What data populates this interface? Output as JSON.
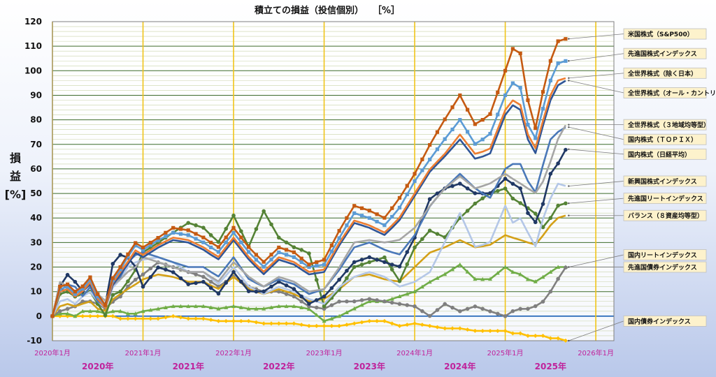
{
  "chart_data": {
    "type": "line",
    "title": "積立ての損益（投信個別）　　［%］",
    "ylabel_chars": [
      "損",
      "益",
      "[%]"
    ],
    "ylim": [
      -10,
      120
    ],
    "yticks": [
      -10,
      0,
      10,
      20,
      30,
      40,
      50,
      60,
      70,
      80,
      90,
      100,
      110,
      120
    ],
    "minor_grid": 2,
    "xlim": [
      2020.0,
      2026.2
    ],
    "x_ticks": [
      {
        "x": 2020.0,
        "label": "2020年1月"
      },
      {
        "x": 2021.0,
        "label": "2021年1月"
      },
      {
        "x": 2022.0,
        "label": "2022年1月"
      },
      {
        "x": 2023.0,
        "label": "2023年1月"
      },
      {
        "x": 2024.0,
        "label": "2024年1月"
      },
      {
        "x": 2025.0,
        "label": "2025年1月"
      },
      {
        "x": 2026.0,
        "label": "2026年1月"
      }
    ],
    "year_labels": [
      {
        "x": 2020.5,
        "label": "2020年"
      },
      {
        "x": 2021.5,
        "label": "2021年"
      },
      {
        "x": 2022.5,
        "label": "2022年"
      },
      {
        "x": 2023.5,
        "label": "2023年"
      },
      {
        "x": 2024.5,
        "label": "2024年"
      },
      {
        "x": 2025.5,
        "label": "2025年"
      }
    ],
    "anchors": [
      2020.0,
      2020.08,
      2020.17,
      2020.25,
      2020.33,
      2020.42,
      2020.5,
      2020.58,
      2020.67,
      2020.75,
      2020.83,
      2020.92,
      2021.0,
      2021.17,
      2021.33,
      2021.5,
      2021.67,
      2021.83,
      2022.0,
      2022.17,
      2022.33,
      2022.5,
      2022.67,
      2022.83,
      2023.0,
      2023.17,
      2023.33,
      2023.5,
      2023.67,
      2023.83,
      2024.0,
      2024.17,
      2024.33,
      2024.5,
      2024.67,
      2024.83,
      2025.0,
      2025.08,
      2025.17,
      2025.25,
      2025.33,
      2025.42,
      2025.5,
      2025.58,
      2025.67
    ],
    "series": [
      {
        "name": "米国株式（S&P500）",
        "color": "#c55a11",
        "marker": "square",
        "values": [
          0,
          12,
          13,
          10,
          12,
          16,
          9,
          4,
          16,
          20,
          25,
          30,
          28,
          32,
          36,
          35,
          32,
          28,
          36,
          28,
          22,
          28,
          26,
          21,
          23,
          35,
          45,
          43,
          40,
          48,
          58,
          70,
          80,
          90,
          78,
          82,
          100,
          109,
          107,
          88,
          76,
          92,
          104,
          112,
          113
        ]
      },
      {
        "name": "先進国株式インデックス",
        "color": "#5b9bd5",
        "marker": "square",
        "values": [
          0,
          11,
          12,
          9,
          11,
          15,
          8,
          4,
          15,
          19,
          24,
          29,
          27,
          31,
          34,
          33,
          30,
          26,
          34,
          26,
          20,
          26,
          24,
          20,
          21,
          32,
          42,
          40,
          37,
          44,
          55,
          64,
          72,
          80,
          70,
          74,
          90,
          95,
          93,
          78,
          72,
          85,
          96,
          103,
          104
        ]
      },
      {
        "name": "全世界株式（除く日本）",
        "color": "#ed7d31",
        "marker": "none",
        "values": [
          0,
          10,
          11,
          8,
          10,
          14,
          7,
          3,
          14,
          18,
          22,
          27,
          25,
          29,
          32,
          31,
          28,
          24,
          32,
          24,
          18,
          24,
          22,
          18,
          19,
          30,
          39,
          37,
          34,
          40,
          50,
          60,
          66,
          74,
          66,
          68,
          84,
          88,
          86,
          74,
          68,
          80,
          90,
          96,
          97
        ]
      },
      {
        "name": "全世界株式（オール・カントリー）",
        "color": "#2f5597",
        "marker": "none",
        "values": [
          0,
          10,
          11,
          8,
          10,
          13,
          7,
          3,
          13,
          17,
          21,
          26,
          24,
          28,
          31,
          30,
          27,
          23,
          31,
          23,
          17,
          23,
          21,
          17,
          18,
          29,
          38,
          36,
          33,
          39,
          49,
          59,
          65,
          72,
          64,
          66,
          82,
          86,
          84,
          72,
          66,
          78,
          88,
          94,
          96
        ]
      },
      {
        "name": "全世界株式（３地域均等型）",
        "color": "#a5a5a5",
        "marker": "none",
        "values": [
          0,
          14,
          12,
          10,
          12,
          13,
          9,
          6,
          13,
          15,
          18,
          20,
          24,
          22,
          20,
          18,
          18,
          14,
          22,
          16,
          12,
          16,
          14,
          10,
          11,
          20,
          30,
          31,
          30,
          31,
          36,
          45,
          52,
          57,
          52,
          54,
          58,
          56,
          54,
          52,
          50,
          55,
          63,
          72,
          78
        ]
      },
      {
        "name": "国内株式（ＴＯＰＩＸ）",
        "color": "#4a78b8",
        "marker": "none",
        "values": [
          0,
          10,
          13,
          12,
          8,
          12,
          6,
          4,
          13,
          16,
          22,
          25,
          26,
          24,
          22,
          20,
          20,
          16,
          24,
          15,
          12,
          15,
          13,
          9,
          11,
          19,
          28,
          30,
          27,
          25,
          33,
          45,
          52,
          58,
          52,
          48,
          60,
          62,
          62,
          55,
          50,
          62,
          72,
          75,
          77
        ]
      },
      {
        "name": "国内株式（日経平均）",
        "color": "#203864",
        "marker": "circle",
        "values": [
          0,
          12,
          17,
          14,
          10,
          14,
          7,
          4,
          22,
          25,
          24,
          20,
          12,
          20,
          18,
          13,
          14,
          9,
          18,
          10,
          10,
          14,
          11,
          5,
          8,
          15,
          22,
          24,
          22,
          20,
          32,
          48,
          52,
          54,
          50,
          50,
          56,
          54,
          52,
          42,
          38,
          46,
          58,
          62,
          68
        ]
      },
      {
        "name": "新興国株式インデックス",
        "color": "#b4c7e7",
        "marker": "none",
        "values": [
          0,
          6,
          7,
          5,
          8,
          10,
          6,
          3,
          12,
          15,
          20,
          22,
          23,
          24,
          22,
          18,
          18,
          13,
          20,
          12,
          9,
          12,
          10,
          7,
          5,
          12,
          16,
          18,
          16,
          12,
          14,
          18,
          30,
          42,
          28,
          30,
          45,
          38,
          40,
          34,
          28,
          40,
          48,
          54,
          53
        ]
      },
      {
        "name": "先進国リートインデックス",
        "color": "#548235",
        "marker": "circle",
        "values": [
          0,
          9,
          10,
          8,
          9,
          10,
          5,
          0,
          9,
          10,
          14,
          19,
          26,
          30,
          34,
          38,
          36,
          30,
          41,
          28,
          43,
          32,
          28,
          26,
          4,
          11,
          20,
          22,
          24,
          14,
          28,
          35,
          32,
          40,
          46,
          50,
          52,
          48,
          46,
          44,
          42,
          36,
          40,
          45,
          46
        ]
      },
      {
        "name": "バランス（８資産均等型）",
        "color": "#d4a017",
        "marker": "none",
        "values": [
          0,
          4,
          5,
          4,
          5,
          6,
          3,
          2,
          7,
          9,
          11,
          13,
          15,
          17,
          16,
          14,
          14,
          11,
          16,
          11,
          9,
          11,
          9,
          6,
          7,
          11,
          16,
          17,
          15,
          14,
          20,
          26,
          28,
          31,
          28,
          29,
          33,
          32,
          31,
          30,
          29,
          33,
          37,
          40,
          41
        ]
      },
      {
        "name": "国内リートインデックス",
        "color": "#7f7f7f",
        "marker": "circle",
        "values": [
          0,
          2,
          3,
          4,
          6,
          6,
          5,
          3,
          6,
          8,
          12,
          15,
          17,
          22,
          20,
          18,
          16,
          12,
          16,
          12,
          10,
          10,
          8,
          4,
          3,
          6,
          6,
          7,
          6,
          5,
          4,
          0,
          5,
          2,
          4,
          2,
          0,
          2,
          3,
          3,
          4,
          6,
          10,
          15,
          20
        ]
      },
      {
        "name": "先進国債券インデックス",
        "color": "#70ad47",
        "marker": "triangle",
        "values": [
          0,
          1,
          1,
          0,
          2,
          2,
          2,
          1,
          2,
          2,
          1,
          1,
          2,
          3,
          4,
          4,
          4,
          3,
          4,
          3,
          3,
          4,
          4,
          3,
          -2,
          0,
          3,
          6,
          6,
          8,
          10,
          14,
          17,
          21,
          15,
          15,
          20,
          18,
          17,
          15,
          14,
          16,
          18,
          20,
          20
        ]
      },
      {
        "name": "国内債券インデックス",
        "color": "#ffc000",
        "marker": "diamond",
        "values": [
          0,
          0,
          0,
          0,
          0,
          0,
          0,
          0,
          0,
          -1,
          -1,
          -1,
          -1,
          -1,
          0,
          -1,
          -1,
          -2,
          -2,
          -2,
          -3,
          -3,
          -3,
          -4,
          -4,
          -4,
          -3,
          -2,
          -2,
          -4,
          -3,
          -4,
          -5,
          -5,
          -6,
          -6,
          -6,
          -7,
          -7,
          -8,
          -8,
          -8,
          -9,
          -9,
          -10
        ]
      }
    ],
    "legend_callouts": [
      {
        "series": 0,
        "label_y": 115
      },
      {
        "series": 1,
        "label_y": 107
      },
      {
        "series": 2,
        "label_y": 99
      },
      {
        "series": 3,
        "label_y": 91
      },
      {
        "series": 4,
        "label_y": 78
      },
      {
        "series": 5,
        "label_y": 72
      },
      {
        "series": 6,
        "label_y": 66
      },
      {
        "series": 7,
        "label_y": 55
      },
      {
        "series": 8,
        "label_y": 48
      },
      {
        "series": 9,
        "label_y": 41
      },
      {
        "series": 10,
        "label_y": 25
      },
      {
        "series": 11,
        "label_y": 20
      },
      {
        "series": 12,
        "label_y": -2
      }
    ]
  }
}
